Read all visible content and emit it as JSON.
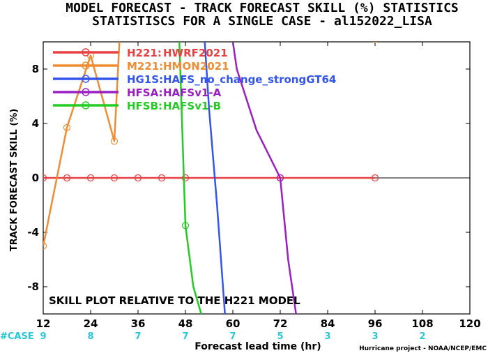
{
  "chart_data": {
    "type": "line",
    "title": "MODEL FORECAST - TRACK FORECAST SKILL (%) STATISTICS",
    "subtitle": "STATISTISCS FOR A SINGLE CASE - al152022_LISA",
    "xlabel": "Forecast lead time (hr)",
    "ylabel": "TRACK FORECAST SKILL (%)",
    "xlim": [
      12,
      120
    ],
    "ylim": [
      -10,
      10
    ],
    "xticks": [
      12,
      24,
      36,
      48,
      60,
      72,
      84,
      96,
      108,
      120
    ],
    "yticks": [
      -8,
      -4,
      0,
      4,
      8
    ],
    "ytick_labels": [
      "-8",
      "-4",
      "0",
      "4",
      "8"
    ],
    "annotation": "SKILL PLOT RELATIVE TO THE H221 MODEL",
    "case_label": "#CASE",
    "case_counts": [
      {
        "x": 12,
        "n": "9"
      },
      {
        "x": 24,
        "n": "8"
      },
      {
        "x": 36,
        "n": "7"
      },
      {
        "x": 48,
        "n": "7"
      },
      {
        "x": 60,
        "n": "7"
      },
      {
        "x": 72,
        "n": "5"
      },
      {
        "x": 84,
        "n": "3"
      },
      {
        "x": 96,
        "n": "3"
      },
      {
        "x": 108,
        "n": "2"
      }
    ],
    "credit": "Hurricane project - NOAA/NCEP/EMC",
    "series": [
      {
        "id": "h221",
        "name": "H221:",
        "label": "HWRF2021",
        "color": "#e84040",
        "points": [
          [
            12,
            0
          ],
          [
            18,
            0
          ],
          [
            24,
            0
          ],
          [
            30,
            0
          ],
          [
            36,
            0
          ],
          [
            42,
            0
          ],
          [
            48,
            0
          ],
          [
            72,
            0
          ],
          [
            96,
            0
          ]
        ]
      },
      {
        "id": "m221",
        "name": "M221:",
        "label": "HMON2021",
        "color": "#ee8d33",
        "points": [
          [
            12,
            -5
          ],
          [
            18,
            3.7
          ],
          [
            24,
            9
          ],
          [
            30,
            2.7
          ],
          [
            32,
            14
          ]
        ],
        "markers": [
          [
            12,
            -5
          ],
          [
            18,
            3.7
          ],
          [
            24,
            9
          ],
          [
            30,
            2.7
          ],
          [
            96,
            10.2
          ]
        ]
      },
      {
        "id": "hg1s",
        "name": "HG1S:",
        "label": "HAFS_no_change_strongGT64",
        "color": "#3355ee",
        "points": [
          [
            52,
            14
          ],
          [
            54,
            5
          ],
          [
            56,
            -2
          ],
          [
            58,
            -10
          ]
        ],
        "markers": []
      },
      {
        "id": "hfsa",
        "name": "HFSA:",
        "label": "HAFSv1-A",
        "color": "#9a1fc2",
        "points": [
          [
            58,
            14
          ],
          [
            61,
            8
          ],
          [
            66,
            3.5
          ],
          [
            72,
            0
          ],
          [
            74,
            -6
          ],
          [
            76,
            -10
          ]
        ],
        "markers": [
          [
            72,
            0
          ]
        ]
      },
      {
        "id": "hfsb",
        "name": "HFSB:",
        "label": "HAFSv1-B",
        "color": "#22cc22",
        "points": [
          [
            46,
            14
          ],
          [
            48,
            -3.5
          ],
          [
            50,
            -8
          ],
          [
            52,
            -10
          ]
        ],
        "markers": [
          [
            48,
            -3.5
          ]
        ]
      }
    ]
  }
}
